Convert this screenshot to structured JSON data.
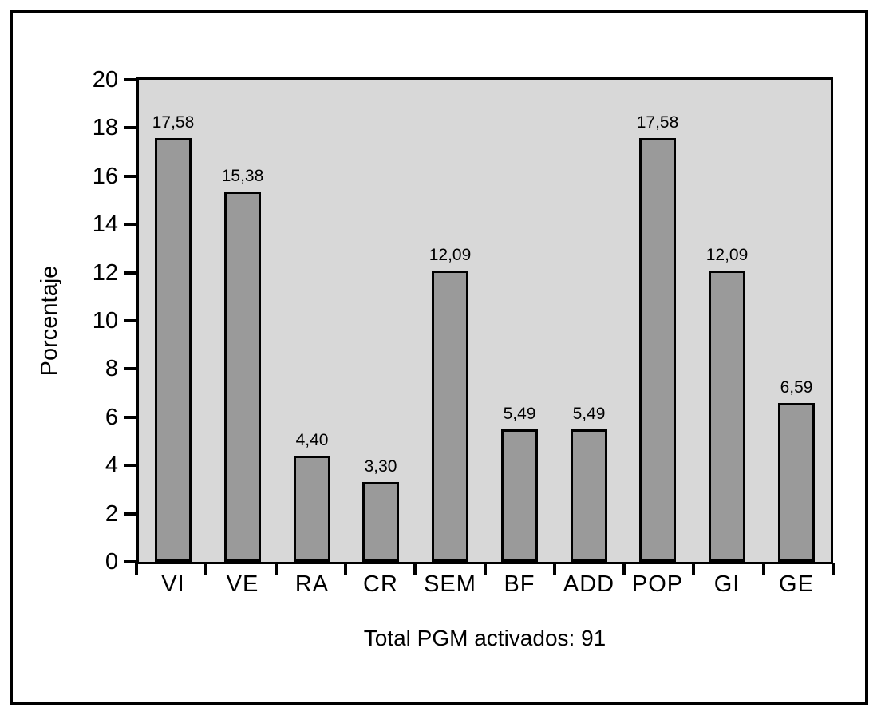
{
  "chart_data": {
    "type": "bar",
    "title": "",
    "ylabel": "Porcentaje",
    "xlabel": "",
    "caption": "Total PGM activados: 91",
    "categories": [
      "VI",
      "VE",
      "RA",
      "CR",
      "SEM",
      "BF",
      "ADD",
      "POP",
      "GI",
      "GE"
    ],
    "values": [
      17.58,
      15.38,
      4.4,
      3.3,
      12.09,
      5.49,
      5.49,
      17.58,
      12.09,
      6.59
    ],
    "value_labels": [
      "17,58",
      "15,38",
      "4,40",
      "3,30",
      "12,09",
      "5,49",
      "5,49",
      "17,58",
      "12,09",
      "6,59"
    ],
    "ylim": [
      0,
      20
    ],
    "yticks": [
      0,
      2,
      4,
      6,
      8,
      10,
      12,
      14,
      16,
      18,
      20
    ],
    "grid": false,
    "legend_position": "none",
    "colors": {
      "bar_fill": "#9a9a9a",
      "bar_border": "#000000",
      "plot_background": "#d8d8d8",
      "axis": "#000000",
      "frame": "#000000",
      "text": "#000000",
      "page_background": "#ffffff"
    }
  }
}
